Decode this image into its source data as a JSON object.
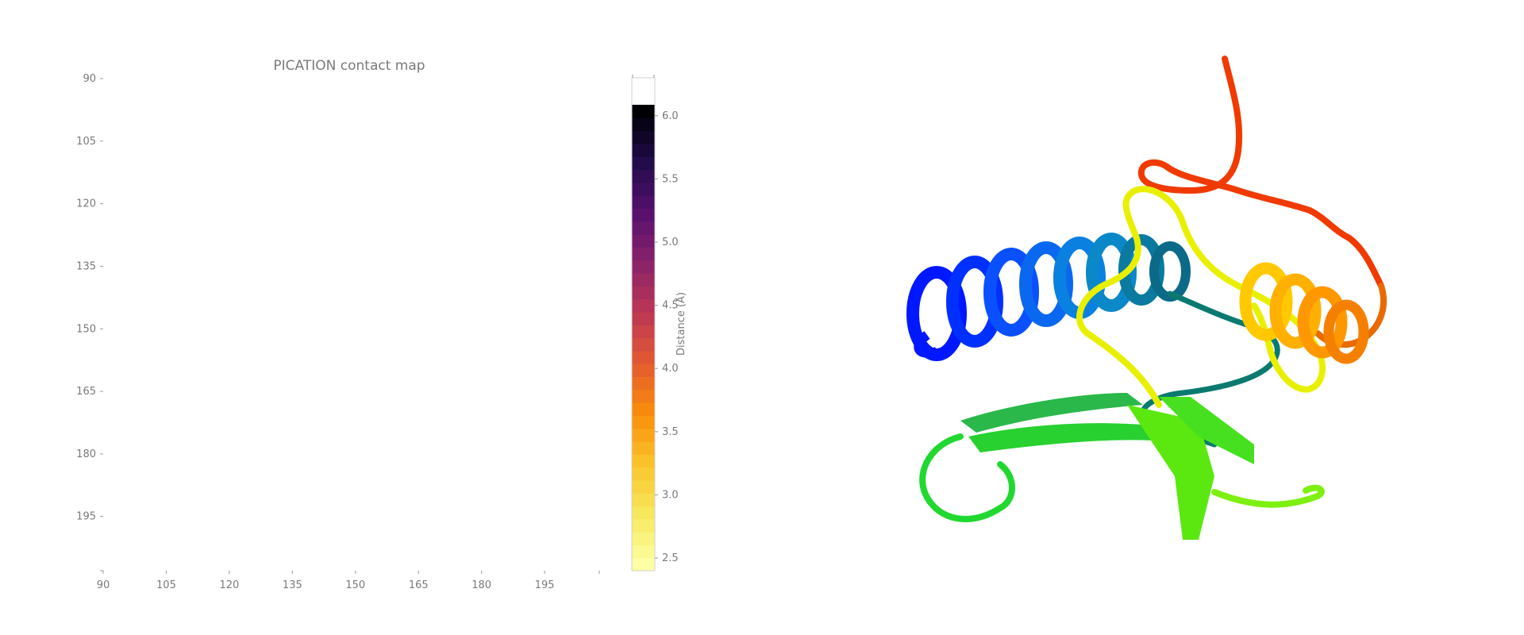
{
  "chart_data": {
    "type": "heatmap",
    "title": "PICATION contact map",
    "x_ticks": [
      "90",
      "105",
      "120",
      "135",
      "150",
      "165",
      "180",
      "195"
    ],
    "y_ticks": [
      "90",
      "105",
      "120",
      "135",
      "150",
      "165",
      "180",
      "195"
    ],
    "xlim": [
      90,
      208
    ],
    "ylim": [
      90,
      208
    ],
    "values": [],
    "grid": false,
    "colorbar": {
      "label": "Distance (Å)",
      "ticks": [
        "2.5",
        "3.0",
        "3.5",
        "4.0",
        "4.5",
        "5.0",
        "5.5",
        "6.0"
      ],
      "range": [
        2.4,
        6.3
      ],
      "colormap": "inferno",
      "colors": [
        "#fcffa4",
        "#f7e85c",
        "#fac42a",
        "#f98e09",
        "#e45a31",
        "#bc3754",
        "#8a226a",
        "#57106e",
        "#210c4a",
        "#000004"
      ]
    }
  },
  "structure_view": {
    "chain_colors": [
      "#0020ff",
      "#0a5cff",
      "#0a8ad4",
      "#0a7090",
      "#0a9070",
      "#12c85a",
      "#42f018",
      "#a8f010",
      "#f0f000",
      "#ffc800",
      "#ff9000",
      "#ff5a00",
      "#e83000",
      "#ff2000"
    ]
  }
}
